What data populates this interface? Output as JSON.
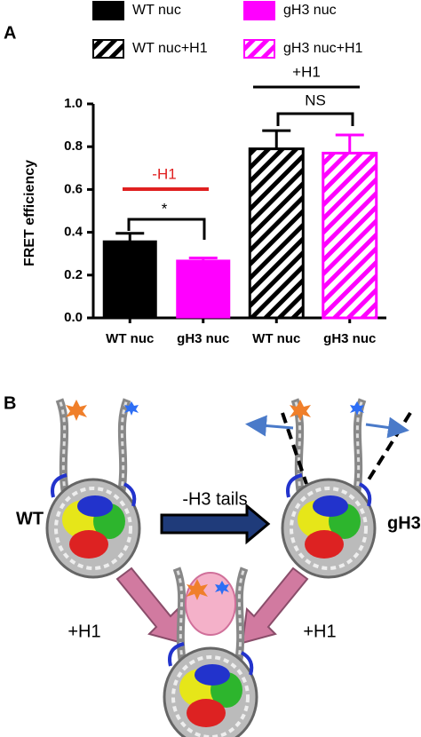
{
  "chart_data": {
    "type": "bar",
    "panel_label": "A",
    "y_label": "FRET efficiency",
    "categories": [
      "WT nuc",
      "gH3 nuc",
      "WT nuc",
      "gH3 nuc"
    ],
    "series": [
      {
        "name": "WT nuc",
        "color": "#000000",
        "hatch": false,
        "values": [
          0.36,
          null,
          null,
          null
        ],
        "errors": [
          0.035,
          null,
          null,
          null
        ]
      },
      {
        "name": "gH3 nuc",
        "color": "#ff00ff",
        "hatch": false,
        "values": [
          null,
          0.27,
          null,
          null
        ],
        "errors": [
          null,
          0.01,
          null,
          null
        ]
      },
      {
        "name": "WT nuc+H1",
        "color": "#000000",
        "hatch": true,
        "values": [
          null,
          null,
          0.79,
          null
        ],
        "errors": [
          null,
          null,
          0.085,
          null
        ]
      },
      {
        "name": "gH3 nuc+H1",
        "color": "#ff00ff",
        "hatch": true,
        "values": [
          null,
          null,
          null,
          0.77
        ],
        "errors": [
          null,
          null,
          null,
          0.085
        ]
      }
    ],
    "ylim": [
      0,
      1.0
    ],
    "yticks": [
      {
        "value": 0,
        "label": "0.0"
      },
      {
        "value": 0.2,
        "label": "0.2"
      },
      {
        "value": 0.4,
        "label": "0.4"
      },
      {
        "value": 0.6,
        "label": "0.6"
      },
      {
        "value": 0.8,
        "label": "0.8"
      },
      {
        "value": 1.0,
        "label": "1.0"
      }
    ],
    "annotations": [
      "-H1",
      "*",
      "+H1",
      "NS"
    ]
  },
  "diagram": {
    "panel_label": "B",
    "labels": [
      "WT",
      "-H3 tails",
      "gH3",
      "+H1",
      "+H1"
    ]
  }
}
